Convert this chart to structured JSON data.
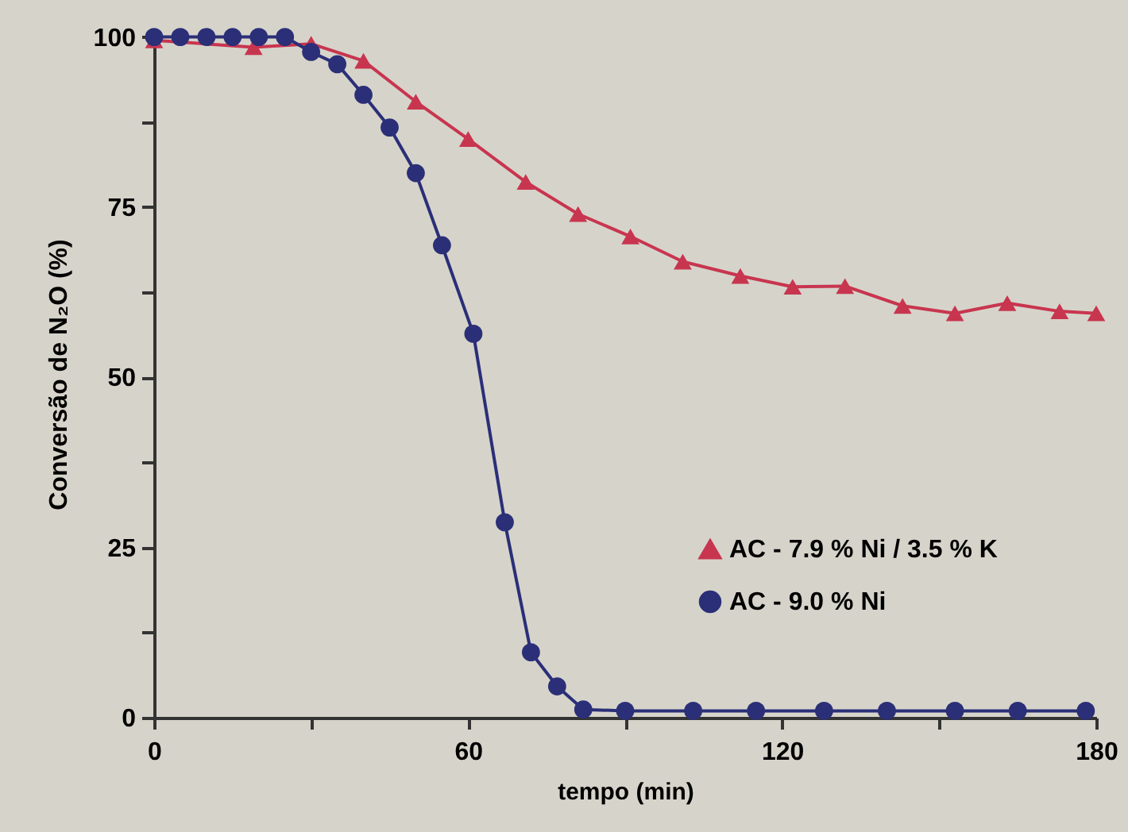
{
  "chart_data": {
    "type": "line",
    "xlabel": "tempo (min)",
    "ylabel": "Conversão de N₂O (%)",
    "xlim": [
      0,
      180
    ],
    "xticks": [
      0,
      {
        "value": 30,
        "label": null
      },
      60,
      {
        "value": 90,
        "label": null
      },
      120,
      {
        "value": 150,
        "label": null
      },
      180
    ],
    "ylim": [
      0,
      101
    ],
    "yticks": [
      0,
      {
        "value": 12.5,
        "label": null
      },
      25,
      {
        "value": 37.5,
        "label": null
      },
      50,
      {
        "value": 62.5,
        "label": null
      },
      75,
      {
        "value": 87.5,
        "label": null
      },
      100
    ],
    "grid": false,
    "legend": "bottom right",
    "series": [
      {
        "name": "AC - 7.9 % Ni / 3.5 % K",
        "color": "#c8354f",
        "marker": "triangle",
        "x": [
          0,
          19,
          30,
          40,
          50,
          60,
          71,
          81,
          91,
          101,
          112,
          122,
          132,
          143,
          153,
          163,
          173,
          180
        ],
        "values": [
          99.5,
          98.5,
          99,
          96.5,
          90.5,
          85,
          78.7,
          74,
          70.7,
          67,
          64.9,
          63.3,
          63.4,
          60.5,
          59.4,
          60.9,
          59.7,
          59.4
        ]
      },
      {
        "name": "AC - 9.0 % Ni",
        "color": "#2b2f78",
        "marker": "circle",
        "x": [
          0,
          5,
          10,
          15,
          20,
          25,
          30,
          35,
          40,
          45,
          50,
          55,
          61,
          67,
          72,
          77,
          82,
          90,
          103,
          115,
          128,
          140,
          153,
          165,
          178
        ],
        "values": [
          100,
          100,
          100,
          100,
          100,
          100,
          97.8,
          96,
          91.5,
          86.7,
          80,
          69.4,
          56.4,
          28.7,
          9.6,
          4.6,
          1.2,
          1,
          1,
          1,
          1,
          1,
          1,
          1,
          1
        ]
      }
    ]
  }
}
